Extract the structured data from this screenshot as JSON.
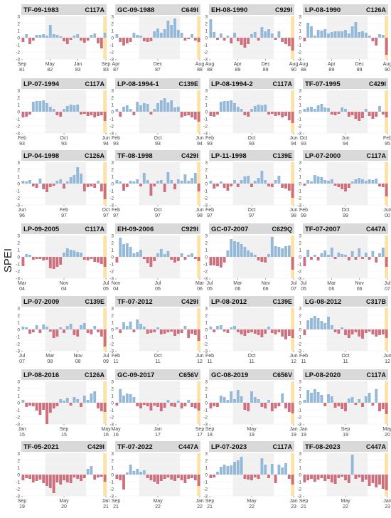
{
  "figure": {
    "ylabel": "SPEI",
    "colors": {
      "positive": "#93b8d8",
      "negative": "#cd6f7d",
      "shade": "#e6e6e6",
      "header": "#d9d9d9",
      "highlight": "#fde2a8",
      "grid": "#efefef"
    }
  },
  "chart_data": [
    {
      "type": "bar",
      "title": "TF-09-1983",
      "tag": "C117A",
      "x_ticks": [
        "Sep\n81",
        "May\n82",
        "Jan\n83",
        "Sep\n83"
      ],
      "ylim": [
        -3,
        3
      ],
      "yticks": [
        3,
        2,
        1,
        0,
        -1,
        -2,
        -3
      ],
      "values": [
        -0.6,
        0.5,
        -0.9,
        -0.4,
        0.4,
        0.4,
        0.5,
        0.3,
        1.8,
        0.5,
        0.4,
        0.2,
        -0.5,
        -0.9,
        -0.3,
        0.3,
        0.5,
        -0.4,
        -0.7,
        -0.4,
        0.4,
        0.6,
        -0.8,
        -1.5,
        0.7
      ]
    },
    {
      "type": "bar",
      "title": "GC-09-1988",
      "tag": "C649I",
      "x_ticks": [
        "Apr\n87",
        "Dec\n87",
        "Aug\n88"
      ],
      "ylim": [
        -3,
        3
      ],
      "yticks": [
        3,
        2,
        1,
        0,
        -1,
        -2,
        -3
      ],
      "values": [
        0.5,
        -0.6,
        -1.1,
        -0.8,
        -0.6,
        0.7,
        0.4,
        0.3,
        -0.5,
        -0.6,
        -0.5,
        0.9,
        1.3,
        0.7,
        1.2,
        2.4,
        1.8,
        2.7,
        1.1,
        0.7,
        -0.4,
        -0.2,
        0.5,
        -0.4,
        -0.6
      ]
    },
    {
      "type": "bar",
      "title": "EH-08-1990",
      "tag": "C929I",
      "x_ticks": [
        "Aug\n88",
        "Apr\n89",
        "Dec\n89",
        "Aug\n90"
      ],
      "ylim": [
        -3,
        3
      ],
      "yticks": [
        3,
        2,
        1,
        0,
        -1,
        -2,
        -3
      ],
      "values": [
        2.6,
        0.8,
        -0.3,
        0.6,
        -0.4,
        0.3,
        -0.8,
        0.7,
        -0.5,
        -1.0,
        -1.4,
        -0.9,
        0.5,
        0.8,
        -0.4,
        1.5,
        0.9,
        1.2,
        0.6,
        -0.3,
        0.9,
        -0.6,
        -0.9,
        -1.2,
        -1.8
      ]
    },
    {
      "type": "bar",
      "title": "LP-08-1990",
      "tag": "C126A",
      "x_ticks": [
        "Aug\n88",
        "Apr\n89",
        "Dec\n89",
        "Aug\n90"
      ],
      "ylim": [
        -3,
        3
      ],
      "yticks": [
        3,
        2,
        1,
        0,
        -1,
        -2,
        -3
      ],
      "values": [
        -0.5,
        2.1,
        1.6,
        0.3,
        1.1,
        1.0,
        1.2,
        0.6,
        0.8,
        0.9,
        0.9,
        0.9,
        1.1,
        0.6,
        1.6,
        2.2,
        0.8,
        0.9,
        0.7,
        0.3,
        -0.5,
        -1.1,
        0.5,
        0.4,
        -2.4
      ]
    },
    {
      "type": "bar",
      "title": "LP-07-1994",
      "tag": "C117A",
      "x_ticks": [
        "Feb\n93",
        "Oct\n93",
        "Jun\n94"
      ],
      "ylim": [
        -3,
        3
      ],
      "yticks": [
        3,
        2,
        1,
        0,
        -1,
        -2,
        -3
      ],
      "values": [
        -0.8,
        -0.7,
        -0.4,
        1.4,
        1.5,
        1.5,
        1.6,
        1.2,
        0.7,
        0.4,
        -0.5,
        -0.7,
        0.4,
        0.8,
        1.0,
        0.9,
        1.0,
        -0.4,
        -0.3,
        -0.6,
        -0.5,
        -0.8,
        -0.6,
        -0.5,
        -1.3
      ]
    },
    {
      "type": "bar",
      "title": "LP-08-1994-1",
      "tag": "C139E",
      "x_ticks": [
        "Feb\n93",
        "Oct\n93",
        "Jun\n94"
      ],
      "ylim": [
        -3,
        3
      ],
      "yticks": [
        3,
        2,
        1,
        0,
        -1,
        -2,
        -3
      ],
      "values": [
        0.4,
        -0.7,
        0.7,
        0.9,
        0.4,
        -0.5,
        1.4,
        0.9,
        1.2,
        1.1,
        -0.4,
        0.4,
        1.2,
        1.6,
        1.9,
        1.3,
        1.6,
        0.6,
        0.7,
        -0.8,
        -0.6,
        -0.5,
        -0.8,
        -1.1,
        -1.4
      ]
    },
    {
      "type": "bar",
      "title": "LP-08-1994-2",
      "tag": "C117A",
      "x_ticks": [
        "Feb\n93",
        "Oct\n93",
        "Jun\n94"
      ],
      "ylim": [
        -3,
        3
      ],
      "yticks": [
        3,
        2,
        1,
        0,
        -1,
        -2,
        -3
      ],
      "values": [
        -0.6,
        -0.7,
        -0.4,
        1.4,
        1.5,
        1.5,
        1.6,
        1.2,
        0.7,
        0.4,
        -0.5,
        -0.7,
        0.4,
        0.8,
        1.0,
        0.9,
        1.0,
        -0.4,
        -0.3,
        -0.6,
        -0.5,
        -0.8,
        -0.6,
        -1.2,
        -1.6
      ]
    },
    {
      "type": "bar",
      "title": "TF-07-1995",
      "tag": "C429I",
      "x_ticks": [
        "Oct\n93",
        "Jun\n94",
        "Feb\n95"
      ],
      "ylim": [
        -3,
        3
      ],
      "yticks": [
        3,
        2,
        1,
        0,
        -1,
        -2,
        -3
      ],
      "values": [
        0.4,
        0.6,
        0.7,
        0.4,
        0.9,
        1.1,
        0.6,
        0.5,
        -0.4,
        -0.5,
        -0.3,
        0.6,
        0.4,
        -0.7,
        -0.5,
        -1.0,
        -1.3,
        -0.9,
        0.4,
        -0.6,
        -1.0,
        -0.7,
        0.8,
        -0.4,
        -0.8
      ]
    },
    {
      "type": "bar",
      "title": "LP-04-1998",
      "tag": "C126A",
      "x_ticks": [
        "Jun\n96",
        "Feb\n97",
        "Oct\n97"
      ],
      "ylim": [
        -3,
        3
      ],
      "yticks": [
        3,
        2,
        1,
        0,
        -1,
        -2,
        -3
      ],
      "values": [
        0.4,
        0.3,
        0.5,
        -0.4,
        -0.6,
        0.7,
        -0.8,
        -1.2,
        -0.5,
        -0.3,
        0.4,
        0.6,
        -0.7,
        0.3,
        0.9,
        1.2,
        2.3,
        1.4,
        -1.1,
        -0.5,
        -0.4,
        -0.6,
        0.4,
        -1.1,
        -2.2
      ]
    },
    {
      "type": "bar",
      "title": "TF-08-1998",
      "tag": "C429I",
      "x_ticks": [
        "Feb\n97",
        "Oct\n97",
        "Jun\n98"
      ],
      "ylim": [
        -3,
        3
      ],
      "yticks": [
        3,
        2,
        1,
        0,
        -1,
        -2,
        -3
      ],
      "values": [
        0.5,
        0.3,
        -1.0,
        -0.5,
        0.4,
        0.3,
        0.6,
        -0.4,
        1.5,
        0.5,
        -1.7,
        -0.4,
        0.4,
        0.5,
        -1.2,
        1.6,
        0.5,
        -0.8,
        0.6,
        0.4,
        1.3,
        0.4,
        0.8,
        1.5,
        -1.1
      ]
    },
    {
      "type": "bar",
      "title": "LP-11-1998",
      "tag": "C139E",
      "x_ticks": [
        "Feb\n97",
        "Oct\n97",
        "Jun\n98"
      ],
      "ylim": [
        -3,
        3
      ],
      "yticks": [
        3,
        2,
        1,
        0,
        -1,
        -2,
        -3
      ],
      "values": [
        0.4,
        -0.7,
        -0.4,
        0.3,
        -0.6,
        -1.0,
        -0.4,
        0.5,
        -0.5,
        0.5,
        1.0,
        1.1,
        -0.5,
        0.4,
        0.8,
        1.8,
        0.5,
        -0.4,
        -0.5,
        0.5,
        1.1,
        -0.6,
        -0.7,
        -1.0,
        -2.0
      ]
    },
    {
      "type": "bar",
      "title": "LP-07-2000",
      "tag": "C117A",
      "x_ticks": [
        "Feb\n99",
        "Oct\n99",
        "Jun\n00"
      ],
      "ylim": [
        -3,
        3
      ],
      "yticks": [
        3,
        2,
        1,
        0,
        -1,
        -2,
        -3
      ],
      "values": [
        -0.3,
        0.5,
        0.3,
        1.2,
        1.0,
        0.9,
        0.5,
        0.4,
        0.6,
        -0.3,
        -0.5,
        -0.8,
        -1.1,
        -0.6,
        0.3,
        0.6,
        0.8,
        0.6,
        0.4,
        0.6,
        0.5,
        0.7,
        -0.4,
        -0.5,
        -1.8
      ]
    },
    {
      "type": "bar",
      "title": "LP-09-2005",
      "tag": "C117A",
      "x_ticks": [
        "Mar\n04",
        "Nov\n04",
        "Jul\n05"
      ],
      "ylim": [
        -3,
        3
      ],
      "yticks": [
        3,
        2,
        1,
        0,
        -1,
        -2,
        -3
      ],
      "values": [
        -1.3,
        0.4,
        0.3,
        -0.4,
        -0.3,
        -0.3,
        -0.5,
        -0.4,
        -1.6,
        -1.7,
        -1.4,
        -1.1,
        0.6,
        1.2,
        1.0,
        0.9,
        0.7,
        0.6,
        -0.4,
        -0.5,
        -0.3,
        -0.7,
        -0.8,
        -1.0,
        -1.4
      ]
    },
    {
      "type": "bar",
      "title": "EH-09-2006",
      "tag": "C929I",
      "x_ticks": [
        "Nov\n04",
        "Jul\n05",
        "Mar\n06"
      ],
      "ylim": [
        -3,
        3
      ],
      "yticks": [
        3,
        2,
        1,
        0,
        -1,
        -2,
        -3
      ],
      "values": [
        -0.8,
        2.7,
        1.8,
        1.9,
        1.4,
        0.5,
        0.7,
        1.0,
        -0.3,
        -0.9,
        -1.4,
        -0.6,
        0.5,
        1.1,
        0.4,
        0.8,
        -0.4,
        -0.8,
        -0.6,
        0.5,
        -0.4,
        0.3,
        0.5,
        -0.3,
        -0.6
      ]
    },
    {
      "type": "bar",
      "title": "GC-07-2007",
      "tag": "C629Q",
      "x_ticks": [
        "Jul\n05",
        "Mar\n06",
        "Nov\n06",
        "Jul\n07"
      ],
      "ylim": [
        -3,
        3
      ],
      "yticks": [
        3,
        2,
        1,
        0,
        -1,
        -2,
        -3
      ],
      "values": [
        -1.2,
        -1.2,
        -1.3,
        -1.5,
        -0.8,
        0.9,
        2.5,
        2.2,
        2.1,
        1.8,
        1.4,
        0.9,
        0.6,
        0.3,
        -0.5,
        -0.7,
        -0.8,
        0.4,
        2.8,
        1.5,
        1.4,
        1.2,
        1.5,
        1.6,
        -1.8
      ]
    },
    {
      "type": "bar",
      "title": "TF-07-2007",
      "tag": "C447A",
      "x_ticks": [
        "Jul\n05",
        "Mar\n06",
        "Nov\n06",
        "Jul\n07"
      ],
      "ylim": [
        -3,
        3
      ],
      "yticks": [
        3,
        2,
        1,
        0,
        -1,
        -2,
        -3
      ],
      "values": [
        -1.3,
        1.0,
        -0.4,
        0.3,
        -0.5,
        0.5,
        0.9,
        0.3,
        1.3,
        -0.3,
        0.6,
        0.4,
        0.3,
        -0.5,
        0.8,
        -0.4,
        1.2,
        -0.3,
        0.6,
        -0.4,
        0.8,
        -0.8,
        0.5,
        1.3,
        -1.4
      ]
    },
    {
      "type": "bar",
      "title": "LP-07-2009",
      "tag": "C139E",
      "x_ticks": [
        "Jul\n07",
        "Mar\n08",
        "Nov\n08",
        "Jul\n09"
      ],
      "ylim": [
        -3,
        3
      ],
      "yticks": [
        3,
        2,
        1,
        0,
        -1,
        -2,
        -3
      ],
      "values": [
        0.4,
        0.3,
        -0.6,
        -0.4,
        0.6,
        -0.5,
        0.7,
        0.4,
        -0.3,
        -1.2,
        -1.0,
        0.3,
        -0.5,
        0.5,
        0.8,
        -0.8,
        -1.0,
        0.6,
        0.9,
        -0.5,
        -0.7,
        0.5,
        -0.4,
        -1.0,
        -2.4
      ]
    },
    {
      "type": "bar",
      "title": "TF-07-2012",
      "tag": "C429I",
      "x_ticks": [
        "Feb\n11",
        "Oct\n11",
        "Jun\n12"
      ],
      "ylim": [
        -3,
        3
      ],
      "yticks": [
        3,
        2,
        1,
        0,
        -1,
        -2,
        -3
      ],
      "values": [
        0.3,
        -0.5,
        1.0,
        0.5,
        1.1,
        -0.4,
        1.4,
        0.8,
        0.4,
        -0.6,
        -0.5,
        -0.4,
        0.3,
        -0.7,
        -0.6,
        -0.4,
        -0.3,
        -0.9,
        -0.6,
        -0.5,
        0.5,
        -1.2,
        -0.6,
        -0.8,
        -1.6
      ]
    },
    {
      "type": "bar",
      "title": "LP-08-2012",
      "tag": "C139E",
      "x_ticks": [
        "Feb\n11",
        "Oct\n11",
        "Jun\n12"
      ],
      "ylim": [
        -3,
        3
      ],
      "yticks": [
        3,
        2,
        1,
        0,
        -1,
        -2,
        -3
      ],
      "values": [
        0.4,
        -0.4,
        0.5,
        0.6,
        -0.3,
        -0.5,
        0.3,
        0.5,
        -0.4,
        -0.7,
        -0.9,
        -0.5,
        -0.4,
        -0.6,
        -0.8,
        -1.1,
        -0.6,
        0.4,
        -0.5,
        -0.7,
        -0.4,
        -1.0,
        -1.4,
        -0.9,
        -1.2
      ]
    },
    {
      "type": "bar",
      "title": "LG-08-2012",
      "tag": "C317B",
      "x_ticks": [
        "Feb\n11",
        "Oct\n11",
        "Jun\n12"
      ],
      "ylim": [
        -3,
        3
      ],
      "yticks": [
        3,
        2,
        1,
        0,
        -1,
        -2,
        -3
      ],
      "values": [
        -0.8,
        1.3,
        1.6,
        1.9,
        1.6,
        1.2,
        0.9,
        1.8,
        0.6,
        -0.4,
        -0.6,
        0.3,
        -0.8,
        -1.2,
        -0.7,
        -0.4,
        -1.0,
        -1.3,
        -0.5,
        -0.3,
        -0.7,
        -1.0,
        -0.8,
        -0.7,
        -1.2
      ]
    },
    {
      "type": "bar",
      "title": "LP-08-2016",
      "tag": "C126A",
      "x_ticks": [
        "Jan\n15",
        "Sep\n15",
        "May\n16"
      ],
      "ylim": [
        -3,
        3
      ],
      "yticks": [
        3,
        2,
        1,
        0,
        -1,
        -2,
        -3
      ],
      "values": [
        0.4,
        -0.6,
        -0.4,
        -0.5,
        -1.1,
        -1.7,
        -1.0,
        -3.0,
        -1.4,
        -0.8,
        -0.5,
        0.5,
        0.3,
        0.7,
        -0.4,
        0.8,
        0.5,
        -0.6,
        1.0,
        0.4,
        1.3,
        1.6,
        -0.8,
        -1.2,
        -1.3
      ]
    },
    {
      "type": "bar",
      "title": "GC-09-2017",
      "tag": "C656V",
      "x_ticks": [
        "May\n16",
        "Jan\n17",
        "Sep\n17"
      ],
      "ylim": [
        -3,
        3
      ],
      "yticks": [
        3,
        2,
        1,
        0,
        -1,
        -2,
        -3
      ],
      "values": [
        -0.4,
        1.9,
        1.0,
        1.3,
        1.2,
        0.8,
        -0.5,
        -0.8,
        -0.3,
        -0.5,
        -1.1,
        -0.4,
        -0.6,
        -1.2,
        -0.7,
        0.4,
        -0.5,
        -0.6,
        0.3,
        -0.8,
        -0.5,
        0.4,
        -0.6,
        -0.8,
        -1.1
      ]
    },
    {
      "type": "bar",
      "title": "GC-08-2019",
      "tag": "C656V",
      "x_ticks": [
        "Sep\n18",
        "May\n19",
        "Jan\n19"
      ],
      "ylim": [
        -3,
        3
      ],
      "yticks": [
        3,
        2,
        1,
        0,
        -1,
        -2,
        -3
      ],
      "values": [
        -0.8,
        -0.5,
        -0.6,
        1.0,
        0.8,
        0.4,
        1.6,
        0.5,
        1.8,
        0.9,
        -1.0,
        -1.2,
        1.6,
        0.8,
        0.5,
        -0.6,
        -0.8,
        0.4,
        -1.2,
        -0.8,
        -0.5,
        1.3,
        -0.8,
        -1.3,
        -1.5
      ]
    },
    {
      "type": "bar",
      "title": "LP-08-2020",
      "tag": "C117A",
      "x_ticks": [
        "Jan\n19",
        "Sep\n19",
        "May\n20"
      ],
      "ylim": [
        -3,
        3
      ],
      "yticks": [
        3,
        2,
        1,
        0,
        -1,
        -2,
        -3
      ],
      "values": [
        0.4,
        1.8,
        1.4,
        1.9,
        1.5,
        1.1,
        -0.5,
        1.2,
        0.9,
        -0.7,
        -0.5,
        -0.9,
        -1.2,
        0.6,
        0.8,
        -0.3,
        0.5,
        -0.6,
        0.9,
        1.4,
        -0.4,
        1.9,
        -1.2,
        -0.9,
        -1.6
      ]
    },
    {
      "type": "bar",
      "title": "TF-05-2021",
      "tag": "C429I",
      "x_ticks": [
        "Sep\n19",
        "May\n20",
        "Jan\n21"
      ],
      "ylim": [
        -3,
        3
      ],
      "yticks": [
        3,
        2,
        1,
        0,
        -1,
        -2,
        -3
      ],
      "values": [
        -0.8,
        -0.5,
        -0.6,
        -1.1,
        -0.9,
        -0.7,
        -1.2,
        -1.6,
        -1.9,
        -2.6,
        -1.1,
        -1.4,
        -0.8,
        -1.1,
        -1.2,
        -0.4,
        -0.6,
        -0.9,
        -0.5,
        0.8,
        1.2,
        -0.7,
        -0.4,
        -0.3,
        -1.0
      ]
    },
    {
      "type": "bar",
      "title": "TF-07-2022",
      "tag": "C447A",
      "x_ticks": [
        "Sep\n21",
        "May\n22",
        "Jan\n22"
      ],
      "ylim": [
        -3,
        3
      ],
      "yticks": [
        3,
        2,
        1,
        0,
        -1,
        -2,
        -3
      ],
      "values": [
        -0.6,
        -0.8,
        -2.1,
        0.3,
        1.4,
        0.5,
        0.8,
        0.4,
        0.6,
        -0.5,
        -0.8,
        -1.0,
        -1.3,
        -0.9,
        -0.6,
        -0.4,
        -0.7,
        -0.9,
        -0.5,
        -0.8,
        -1.2,
        -0.6,
        -0.5,
        -0.8,
        -1.6
      ]
    },
    {
      "type": "bar",
      "title": "LP-07-2023",
      "tag": "C117A",
      "x_ticks": [
        "Sep\n21",
        "May\n22",
        "Jan\n23"
      ],
      "ylim": [
        -3,
        3
      ],
      "yticks": [
        3,
        2,
        1,
        0,
        -1,
        -2,
        -3
      ],
      "values": [
        -0.5,
        -0.4,
        0.4,
        1.1,
        1.4,
        1.2,
        1.3,
        1.8,
        2.0,
        2.5,
        -0.6,
        -0.7,
        -0.8,
        -0.4,
        -0.6,
        2.3,
        1.4,
        -0.5,
        1.5,
        -1.2,
        1.4,
        1.0,
        1.6,
        -0.6,
        -1.4
      ]
    },
    {
      "type": "bar",
      "title": "TF-08-2023",
      "tag": "C447A",
      "x_ticks": [
        "Sep\n21",
        "May\n22",
        "Jan\n23"
      ],
      "ylim": [
        -3,
        3
      ],
      "yticks": [
        3,
        2,
        1,
        0,
        -1,
        -2,
        -3
      ],
      "values": [
        -1.1,
        -0.8,
        -0.6,
        -1.0,
        -0.7,
        -0.5,
        -0.9,
        -0.6,
        -1.1,
        -1.3,
        -0.5,
        -0.3,
        -0.8,
        -1.2,
        2.8,
        -0.6,
        -0.4,
        -1.0,
        -0.7,
        -1.6,
        -1.2,
        -1.8,
        -1.4,
        -2.0,
        -2.2
      ]
    }
  ]
}
